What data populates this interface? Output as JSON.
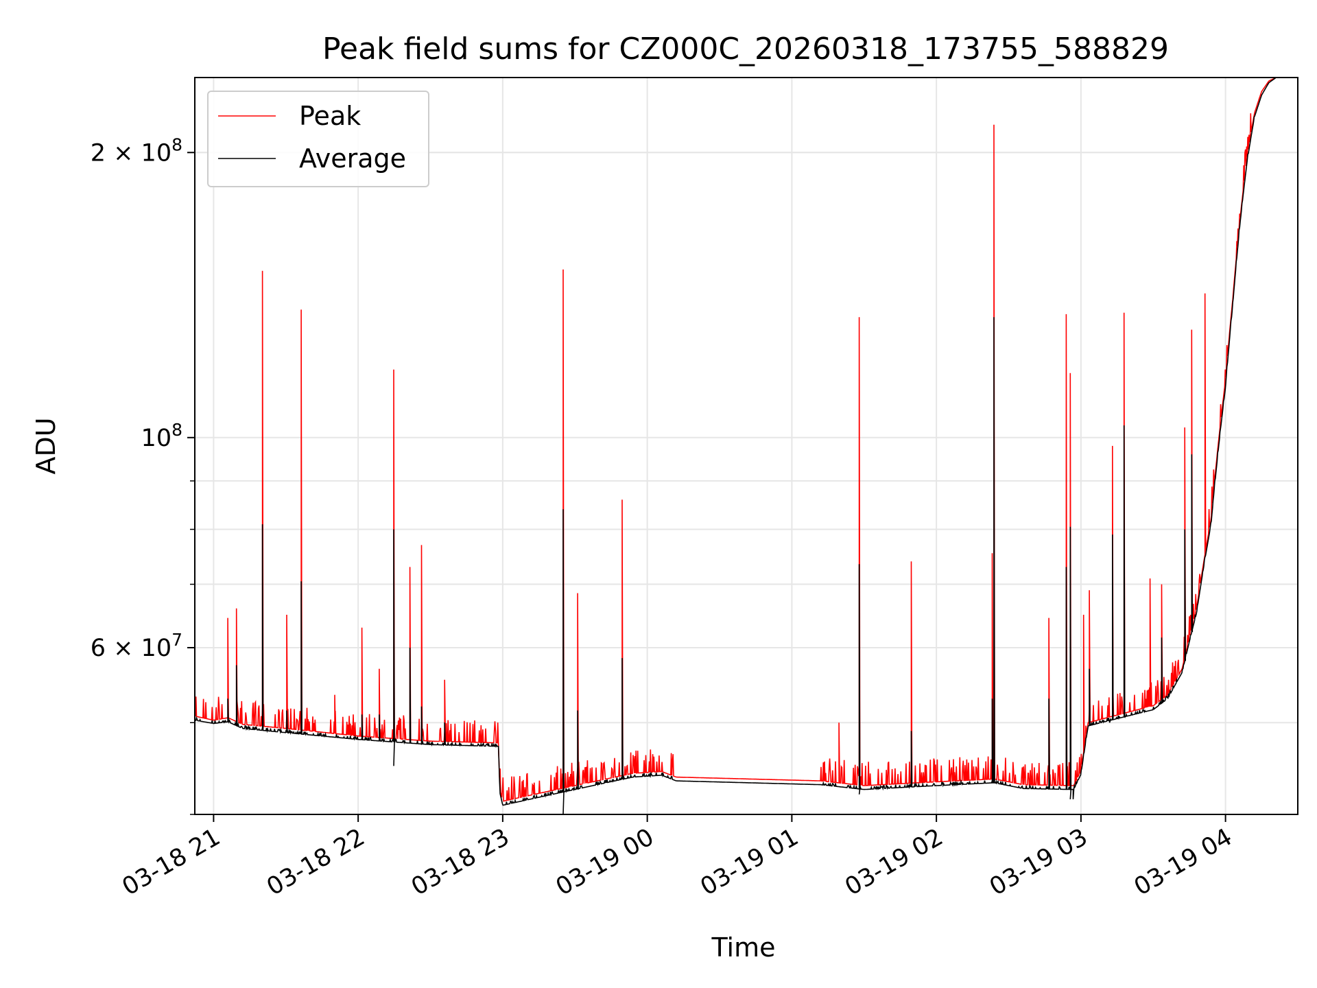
{
  "chart_data": {
    "type": "line",
    "title": "Peak field sums for CZ000C_20260318_173755_588829",
    "xlabel": "Time",
    "ylabel": "ADU",
    "y_scale": "log",
    "ylim": [
      40000000,
      240000000
    ],
    "x_range_hours": [
      20.87,
      28.5
    ],
    "x_ticks": [
      {
        "hour": 21,
        "label": "03-18 21"
      },
      {
        "hour": 22,
        "label": "03-18 22"
      },
      {
        "hour": 23,
        "label": "03-18 23"
      },
      {
        "hour": 24,
        "label": "03-19 00"
      },
      {
        "hour": 25,
        "label": "03-19 01"
      },
      {
        "hour": 26,
        "label": "03-19 02"
      },
      {
        "hour": 27,
        "label": "03-19 03"
      },
      {
        "hour": 28,
        "label": "03-19 04"
      }
    ],
    "y_major_ticks": [
      {
        "value": 60000000,
        "mantissa": "6",
        "power": "7"
      },
      {
        "value": 100000000,
        "mantissa": "",
        "power": "8"
      },
      {
        "value": 200000000,
        "mantissa": "2",
        "power": "8"
      }
    ],
    "y_minor_ticks": [
      40000000,
      50000000,
      60000000,
      70000000,
      80000000,
      90000000,
      200000000
    ],
    "grid": true,
    "legend": {
      "position": "upper-left"
    },
    "series": [
      {
        "name": "Peak",
        "color": "#ff0000",
        "baseline": [
          [
            20.87,
            50.8
          ],
          [
            21.0,
            50.3
          ],
          [
            21.1,
            50.6
          ],
          [
            21.2,
            49.8
          ],
          [
            21.5,
            49.3
          ],
          [
            22.0,
            48.4
          ],
          [
            22.5,
            47.8
          ],
          [
            22.97,
            47.6
          ],
          [
            22.98,
            42.6
          ],
          [
            23.0,
            41.3
          ],
          [
            23.5,
            42.9
          ],
          [
            23.9,
            44.2
          ],
          [
            24.1,
            44.4
          ],
          [
            24.2,
            43.8
          ],
          [
            25.2,
            43.4
          ],
          [
            25.5,
            42.9
          ],
          [
            26.0,
            43.3
          ],
          [
            26.4,
            43.6
          ],
          [
            26.6,
            43.0
          ],
          [
            26.95,
            42.9
          ],
          [
            27.0,
            44.5
          ],
          [
            27.05,
            50.0
          ],
          [
            27.5,
            52.1
          ],
          [
            27.6,
            53.5
          ],
          [
            27.7,
            57.0
          ],
          [
            27.8,
            66.0
          ],
          [
            27.9,
            82.0
          ],
          [
            28.0,
            115.0
          ],
          [
            28.05,
            140.0
          ],
          [
            28.1,
            170.0
          ],
          [
            28.15,
            198.0
          ],
          [
            28.2,
            220.0
          ],
          [
            28.25,
            232.0
          ],
          [
            28.3,
            238.0
          ],
          [
            28.35,
            240.0
          ],
          [
            28.5,
            240.0
          ]
        ],
        "spikes": [
          [
            21.1,
            64.5
          ],
          [
            21.16,
            66.0
          ],
          [
            21.34,
            150.0
          ],
          [
            21.51,
            65.0
          ],
          [
            21.61,
            136.5
          ],
          [
            21.84,
            53.5
          ],
          [
            22.03,
            63.0
          ],
          [
            22.15,
            57.0
          ],
          [
            22.25,
            118.0
          ],
          [
            22.36,
            73.0
          ],
          [
            22.44,
            77.0
          ],
          [
            22.6,
            55.5
          ],
          [
            23.42,
            150.5
          ],
          [
            23.52,
            68.5
          ],
          [
            23.83,
            86.0
          ],
          [
            25.33,
            50.0
          ],
          [
            25.47,
            134.0
          ],
          [
            25.83,
            74.0
          ],
          [
            26.39,
            75.5
          ],
          [
            26.4,
            214.0
          ],
          [
            26.78,
            64.5
          ],
          [
            26.9,
            135.0
          ],
          [
            26.93,
            117.0
          ],
          [
            27.02,
            65.0
          ],
          [
            27.06,
            69.0
          ],
          [
            27.22,
            98.0
          ],
          [
            27.3,
            135.5
          ],
          [
            27.48,
            71.0
          ],
          [
            27.56,
            70.0
          ],
          [
            27.72,
            102.5
          ],
          [
            27.77,
            130.0
          ],
          [
            27.86,
            142.0
          ]
        ]
      },
      {
        "name": "Average",
        "color": "#000000",
        "baseline": [
          [
            20.87,
            50.3
          ],
          [
            21.0,
            49.9
          ],
          [
            21.1,
            50.1
          ],
          [
            21.2,
            49.3
          ],
          [
            21.5,
            48.8
          ],
          [
            22.0,
            48.0
          ],
          [
            22.5,
            47.4
          ],
          [
            22.97,
            47.2
          ],
          [
            22.98,
            42.2
          ],
          [
            23.0,
            40.9
          ],
          [
            23.5,
            42.5
          ],
          [
            23.9,
            43.8
          ],
          [
            24.1,
            44.0
          ],
          [
            24.2,
            43.4
          ],
          [
            25.2,
            43.0
          ],
          [
            25.5,
            42.5
          ],
          [
            26.0,
            42.9
          ],
          [
            26.4,
            43.2
          ],
          [
            26.6,
            42.6
          ],
          [
            26.95,
            42.5
          ],
          [
            27.0,
            44.1
          ],
          [
            27.05,
            49.6
          ],
          [
            27.5,
            51.6
          ],
          [
            27.6,
            53.0
          ],
          [
            27.7,
            56.5
          ],
          [
            27.8,
            65.3
          ],
          [
            27.9,
            81.0
          ],
          [
            28.0,
            113.0
          ],
          [
            28.05,
            138.0
          ],
          [
            28.1,
            168.0
          ],
          [
            28.15,
            196.0
          ],
          [
            28.2,
            218.0
          ],
          [
            28.25,
            230.0
          ],
          [
            28.3,
            237.0
          ],
          [
            28.35,
            240.0
          ],
          [
            28.5,
            240.0
          ]
        ],
        "spikes": [
          [
            21.1,
            53.0
          ],
          [
            21.16,
            57.5
          ],
          [
            21.34,
            81.0
          ],
          [
            21.51,
            51.5
          ],
          [
            21.61,
            70.5
          ],
          [
            22.03,
            51.0
          ],
          [
            22.15,
            51.0
          ],
          [
            22.25,
            80.0
          ],
          [
            22.36,
            60.0
          ],
          [
            22.44,
            52.0
          ],
          [
            22.6,
            50.0
          ],
          [
            23.42,
            84.0
          ],
          [
            23.52,
            51.5
          ],
          [
            23.83,
            58.5
          ],
          [
            25.47,
            73.5
          ],
          [
            25.83,
            49.0
          ],
          [
            26.39,
            53.0
          ],
          [
            26.4,
            134.0
          ],
          [
            26.78,
            53.0
          ],
          [
            26.9,
            73.0
          ],
          [
            26.93,
            80.5
          ],
          [
            27.06,
            57.0
          ],
          [
            27.22,
            79.0
          ],
          [
            27.3,
            103.0
          ],
          [
            27.56,
            61.5
          ],
          [
            27.72,
            80.0
          ],
          [
            27.77,
            96.0
          ]
        ],
        "dips": [
          [
            22.25,
            45.0
          ],
          [
            23.42,
            39.5
          ],
          [
            25.47,
            42.0
          ],
          [
            26.93,
            41.5
          ],
          [
            26.95,
            41.5
          ],
          [
            27.2,
            50.0
          ]
        ]
      }
    ]
  }
}
